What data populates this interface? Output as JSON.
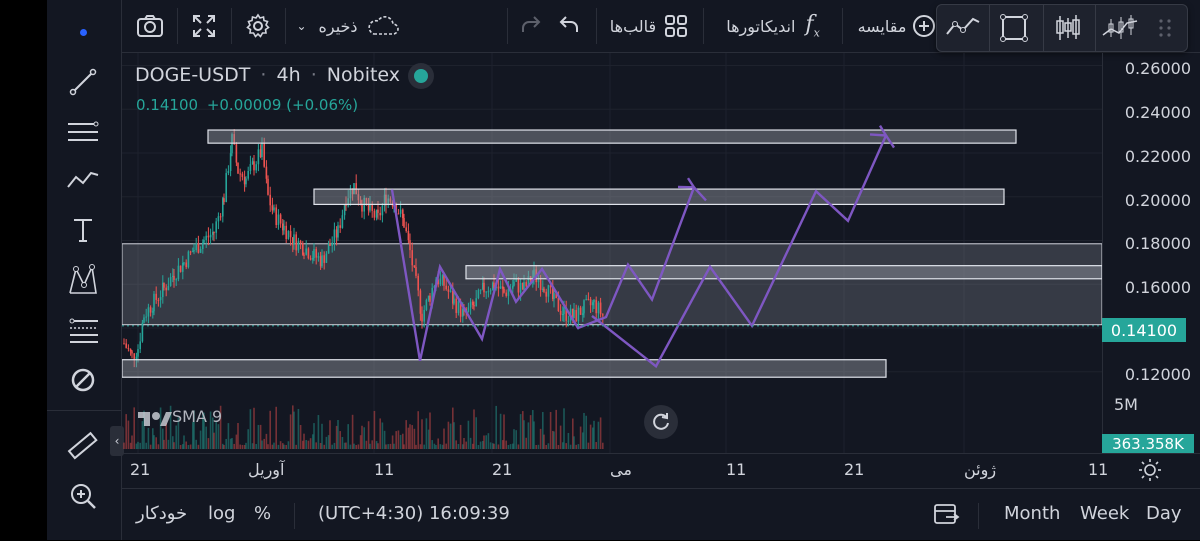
{
  "toolbar": {
    "save_label": "ذخیره",
    "templates_label": "قالب‌ها",
    "indicators_label": "اندیکاتورها",
    "compare_label": "مقایسه"
  },
  "legend": {
    "symbol": "DOGE-USDT",
    "interval": "4h",
    "exchange": "Nobitex",
    "price": "0.14100",
    "change": "+0.00009 (+0.06%)"
  },
  "indicator": {
    "name": "SMA 9"
  },
  "price_axis": {
    "labels": [
      "0.26000",
      "0.24000",
      "0.22000",
      "0.20000",
      "0.18000",
      "0.16000",
      "0.14000",
      "0.12000"
    ],
    "current_price": "0.14100",
    "volume_scale": "5M",
    "volume_value": "363.358K"
  },
  "time_axis": {
    "labels": [
      "21",
      "آوریل",
      "11",
      "21",
      "می",
      "11",
      "21",
      "ژوئن",
      "11"
    ]
  },
  "bottom_bar": {
    "auto_label": "خودکار",
    "log_label": "log",
    "percent_label": "%",
    "timezone_time": "(UTC+4:30) 16:09:39",
    "month_label": "Month",
    "week_label": "Week",
    "day_label": "Day"
  },
  "colors": {
    "background": "#131722",
    "up": "#26a69a",
    "down": "#ef5350",
    "projection": "#7e57c2",
    "zone": "#9598a1"
  }
}
